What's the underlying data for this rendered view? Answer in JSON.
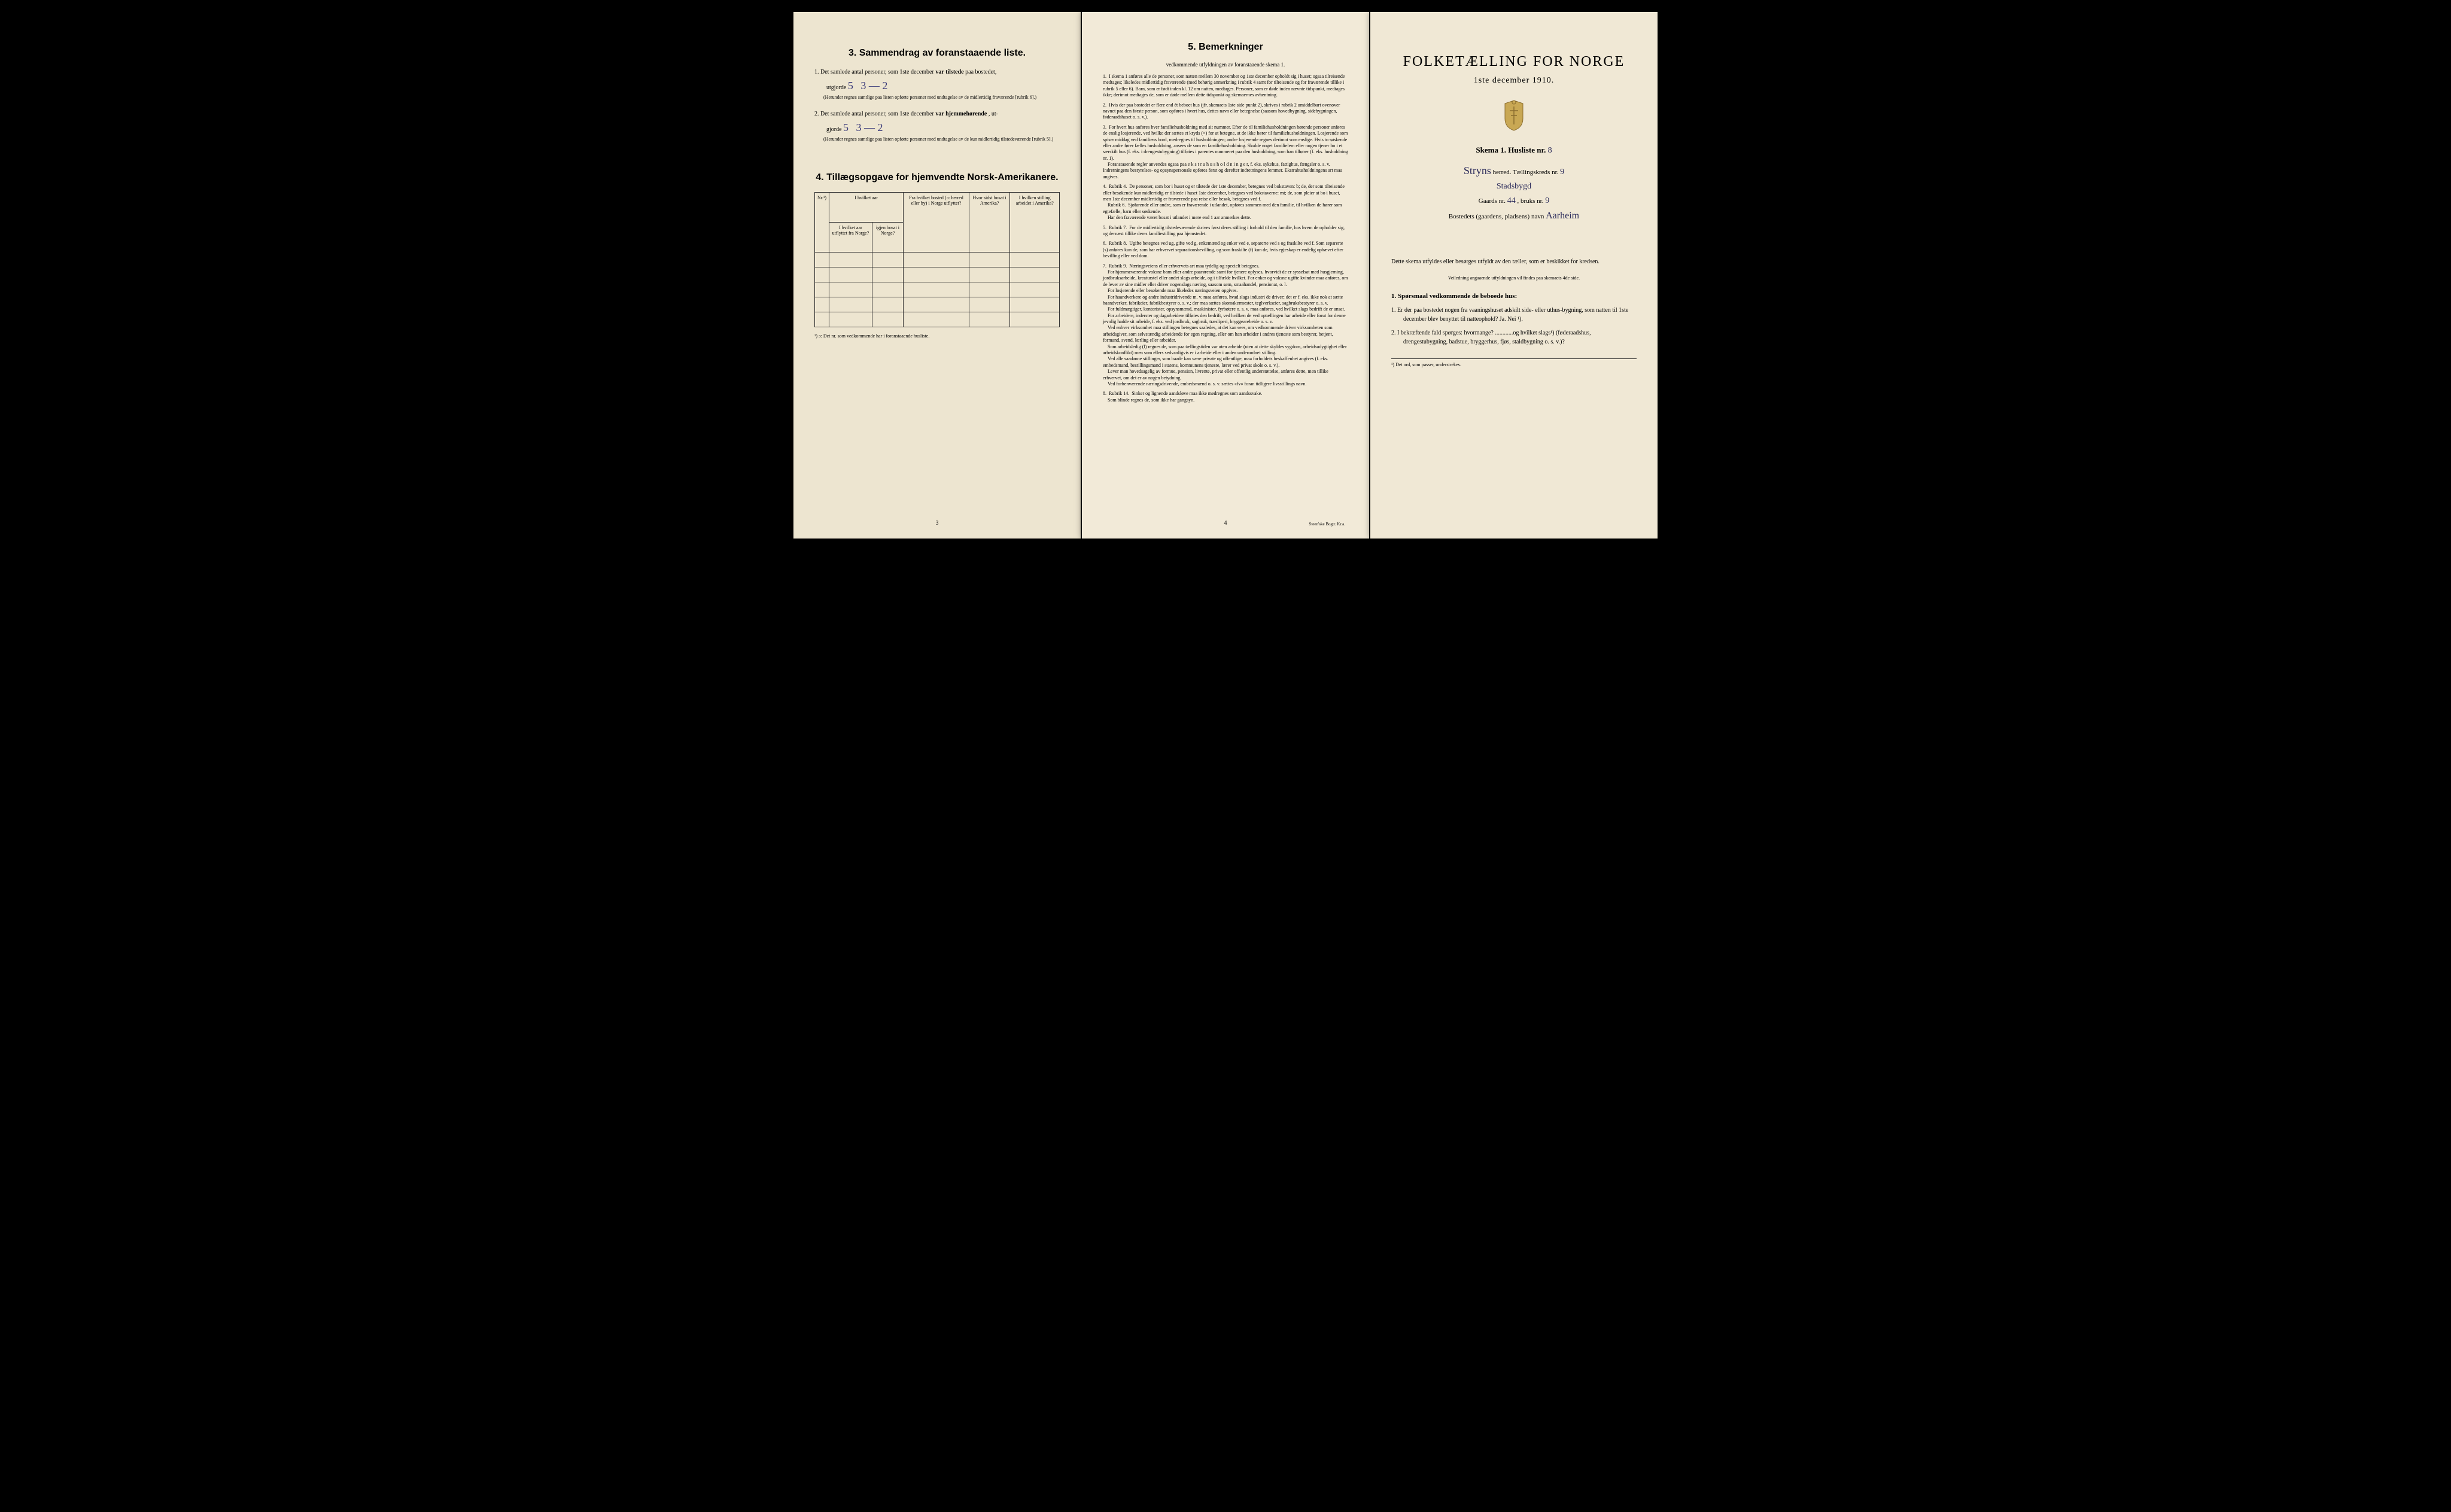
{
  "colors": {
    "page_bg_left": "#ede5d0",
    "page_bg_middle": "#f2ead8",
    "page_bg_right": "#f0e8d5",
    "text": "#1a1a1a",
    "handwriting": "#3a3a7a",
    "border": "#333333"
  },
  "page_left": {
    "section3": {
      "title": "3.  Sammendrag av foranstaaende liste.",
      "item1": {
        "prefix": "1.  Det samlede antal personer, som 1ste december ",
        "bold": "var tilstede",
        "suffix": " paa bostedet,",
        "line2_prefix": "utgjorde",
        "handwritten1": "5",
        "handwritten2": "3 — 2",
        "paren": "(Herunder regnes samtlige paa listen opførte personer med undtagelse av de midlertidig fraværende [rubrik 6].)"
      },
      "item2": {
        "prefix": "2.  Det samlede antal personer, som 1ste december ",
        "bold": "var hjemmehørende",
        "suffix": ", ut-",
        "line2_prefix": "gjorde",
        "handwritten1": "5",
        "handwritten2": "3 — 2",
        "paren": "(Herunder regnes samtlige paa listen opførte personer med undtagelse av de kun midlertidig tilstedeværende [rubrik 5].)"
      }
    },
    "section4": {
      "title": "4.  Tillægsopgave for hjemvendte Norsk-Amerikanere.",
      "table": {
        "headers": [
          "Nr.¹)",
          "I hvilket aar\nutflyttet\nfra\nNorge?",
          "igjen\nbosat\ni Norge?",
          "Fra hvilket bosted\n(ɔ: herred eller by)\ni Norge utflyttet?",
          "Hvor sidst\nbosat\ni Amerika?",
          "I hvilken stilling\narbeidet\ni Amerika?"
        ],
        "row_count": 5
      },
      "footnote": "¹) ɔ: Det nr. som vedkommende har i foranstaaende husliste."
    },
    "page_number": "3"
  },
  "page_middle": {
    "section5": {
      "title": "5.  Bemerkninger",
      "subtitle": "vedkommende utfyldningen av foranstaaende skema 1.",
      "items": [
        "1.  I skema 1 anføres alle de personer, som natten mellem 30 november og 1ste december opholdt sig i huset; ogsaa tilreisende medtages; likeledes midlertidig fraværende (med behørig anmerkning i rubrik 4 samt for tilreisende og for fraværende tillike i rubrik 5 eller 6). Barn, som er født inden kl. 12 om natten, medtages. Personer, som er døde inden nævnte tidspunkt, medtages ikke; derimot medtages de, som er døde mellem dette tidspunkt og skemaernes avhentning.",
        "2.  Hvis der paa bostedet er flere end ét beboet hus (jfr. skemaets 1ste side punkt 2), skrives i rubrik 2 umiddelbart ovenover navnet paa den første person, som opføres i hvert hus, dettes navn eller betegnelse (saasom hovedbygning, sidebygningen, føderaadshuset o. s. v.).",
        "3.  For hvert hus anføres hver familiehusholdning med sit nummer. Efter de til familiehusholdningen hørende personer anføres de enslig losjerende, ved hvilke der sættes et kryds (×) for at betegne, at de ikke hører til familiehusholdningen. Losjerende som spiser middag ved familiens bord, medregnes til husholdningen; andre losjerende regnes derimot som enslige. Hvis to søskende eller andre fører fælles husholdning, ansees de som en familiehusholdning. Skulde noget familielem eller nogen tjener bo i et særskilt hus (f. eks. i drengestubygning) tilføies i parentes nummeret paa den husholdning, som han tilhører (f. eks. husholdning nr. 1).\n    Foranstaaende regler anvendes ogsaa paa e k s t r a h u s h o l d n i n g e r, f. eks. sykehus, fattighus, fængsler o. s. v. Indretningens bestyrelses- og opsynspersonale opføres først og derefter indretningens lemmer. Ekstrahusholdningens art maa angives.",
        "4.  Rubrik 4.  De personer, som bor i huset og er tilstede der 1ste december, betegnes ved bokstaven: b; de, der som tilreisende eller besøkende kun midlertidig er tilstede i huset 1ste december, betegnes ved bokstaverne: mt; de, som pleier at bo i huset, men 1ste december midlertidig er fraværende paa reise eller besøk, betegnes ved f.\n    Rubrik 6.  Sjøfarende eller andre, som er fraværende i utlandet, opføres sammen med den familie, til hvilken de hører som egtefælle, barn eller søskende.\n    Har den fraværende været bosat i utlandet i mere end 1 aar anmerkes dette.",
        "5.  Rubrik 7.  For de midlertidig tilstedeværende skrives først deres stilling i forhold til den familie, hos hvem de opholder sig, og dernæst tillike deres familiestilling paa hjemstedet.",
        "6.  Rubrik 8.  Ugifte betegnes ved ug, gifte ved g, enkemænd og enker ved e, separerte ved s og fraskilte ved f. Som separerte (s) anføres kun de, som har erhvervet separationsbevilling, og som fraskilte (f) kun de, hvis egteskap er endelig ophævet efter bevilling eller ved dom.",
        "7.  Rubrik 9.  Næringsveiens eller erhvervets art maa tydelig og specielt betegnes.\n    For hjemmeværende voksne barn eller andre paarørende samt for tjenere oplyses, hvorvidt de er sysselsat med husgjerning, jordbruksarbeide, kreaturstel eller andet slags arbeide, og i tilfælde hvilket. For enker og voksne ugifte kvinder maa anføres, om de lever av sine midler eller driver nogenslags næring, saasom søm, smaahandel, pensionat, o. l.\n    For losjerende eller besøkende maa likeledes næringsveien opgives.\n    For haandverkere og andre industridrivende m. v. maa anføres, hvad slags industri de driver; det er f. eks. ikke nok at sætte haandverker, fabrikeier, fabrikbestyrer o. s. v.; der maa sættes skomakermester, teglverkseier, sagbruksbestyrer o. s. v.\n    For fuldmægtiger, kontorister, opsynsmænd, maskinister, fyrbøtere o. s. v. maa anføres, ved hvilket slags bedrift de er ansat.\n    For arbeidere, inderster og dagarbeidere tilføies den bedrift, ved hvilken de ved optællingen har arbeide eller forut for denne jevnlig hadde sit arbeide, f. eks. ved jordbruk, sagbruk, træsliperi, bryggearebeide o. s. v.\n    Ved enhver virksomhet maa stillingen betegnes saaledes, at det kan sees, om vedkommende driver virksomheten som arbeidsgiver, som selvstændig arbeidende for egen regning, eller om han arbeider i andres tjeneste som bestyrer, betjent, formand, svend, lærling eller arbeider.\n    Som arbeidsledig (l) regnes de, som paa tællingstiden var uten arbeide (uten at dette skyldes sygdom, arbeidsudygtighet eller arbeidskonflikt) men som ellers sedvanligvis er i arbeide eller i anden underordnet stilling.\n    Ved alle saadanne stillinger, som baade kan være private og offentlige, maa forholdets beskaffenhet angives (f. eks. embedsmand, bestillingsmand i statens, kommunens tjeneste, lærer ved privat skole o. s. v.).\n    Lever man hovedsagelig av formue, pension, livrente, privat eller offentlig understøttelse, anføres dette, men tillike erhvervet, om det er av nogen betydning.\n    Ved forhenværende næringsdrivende, embedsmænd o. s. v. sættes «fv» foran tidligere livsstillings navn.",
        "8.  Rubrik 14.  Sinker og lignende aandsløve maa ikke medregnes som aandssvake.\n    Som blinde regnes de, som ikke har gangsyn."
      ]
    },
    "page_number": "4",
    "printer": "Steen'ske Bogtr. Kr.a."
  },
  "page_right": {
    "main_title": "FOLKETÆLLING FOR NORGE",
    "date_line": "1ste december 1910.",
    "skema": {
      "prefix": "Skema 1.  Husliste nr.",
      "value": "8"
    },
    "herred": {
      "name": "Stryns",
      "label": "herred.  Tællingskreds nr.",
      "kreds_nr": "9"
    },
    "sub_herred": "Stadsbygd",
    "gaard": {
      "prefix": "Gaards nr.",
      "gaards_nr": "44",
      "middle": ", bruks nr.",
      "bruks_nr": "9"
    },
    "bosted": {
      "prefix": "Bostedets (gaardens, pladsens) navn",
      "value": "Aarheim"
    },
    "instruction": "Dette skema utfyldes eller besørges utfyldt av den tæller, som er beskikket for kredsen.",
    "sub_instruction": "Veiledning angaaende utfyldningen vil findes paa skemaets 4de side.",
    "section1": {
      "title": "1. Spørsmaal vedkommende de beboede hus:",
      "q1": "1.  Er der paa bostedet nogen fra vaaningshuset adskilt side- eller uthus-bygning, som natten til 1ste december blev benyttet til natteophold?    Ja.   Nei ¹).",
      "q2": "2.  I bekræftende fald spørges:  hvormange? ............og hvilket slags¹) (føderaadshus, drengestubygning, badstue, bryggerhus, fjøs, staldbygning o. s. v.)?"
    },
    "footnote": "¹)  Det ord, som passer, understrekes."
  }
}
